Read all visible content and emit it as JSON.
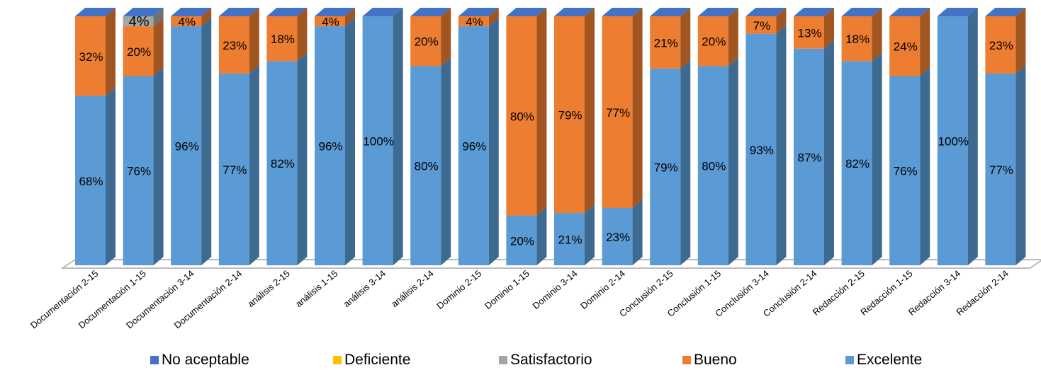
{
  "chart_data": {
    "type": "bar",
    "stacked": true,
    "three_d": true,
    "categories": [
      "Documentación 2-15",
      "Documentación 1-15",
      "Documentación  3-14",
      "Documentación 2-14",
      "análisis 2-15",
      "análisis 1-15",
      "análisis  3-14",
      "análisis 2-14",
      "Dominio 2-15",
      "Dominio 1-15",
      "Dominio  3-14",
      "Dominio 2-14",
      "Conclusión 2-15",
      "Conclusión 1-15",
      "Conclusión  3-14",
      "Conclusión 2-14",
      "Redacción 2-15",
      "Redacción 1-15",
      "Redacción  3-14",
      "Redacción 2-14"
    ],
    "series": [
      {
        "name": "No aceptable",
        "color": "#4472c4",
        "values": [
          0,
          0,
          0,
          0,
          0,
          0,
          0,
          0,
          0,
          0,
          0,
          0,
          0,
          0,
          0,
          0,
          0,
          0,
          0,
          0
        ],
        "labels": [
          "",
          "",
          "",
          "",
          "",
          "",
          "",
          "",
          "",
          "",
          "",
          "",
          "",
          "",
          "",
          "",
          "",
          "",
          "",
          ""
        ]
      },
      {
        "name": "Deficiente",
        "color": "#ffc000",
        "values": [
          0,
          0,
          0,
          0,
          0,
          0,
          0,
          0,
          0,
          0,
          0,
          0,
          0,
          0,
          0,
          0,
          0,
          0,
          0,
          0
        ],
        "labels": [
          "",
          "",
          "",
          "",
          "",
          "",
          "",
          "",
          "",
          "",
          "",
          "",
          "",
          "",
          "",
          "",
          "",
          "",
          "",
          ""
        ]
      },
      {
        "name": "Satisfactorio",
        "color": "#a5a5a5",
        "values": [
          0,
          4,
          0,
          0,
          0,
          0,
          0,
          0,
          0,
          0,
          0,
          0,
          0,
          0,
          0,
          0,
          0,
          0,
          0,
          0
        ],
        "labels": [
          "",
          "4%",
          "",
          "",
          "",
          "",
          "",
          "",
          "",
          "",
          "",
          "",
          "",
          "",
          "",
          "",
          "",
          "",
          "",
          ""
        ]
      },
      {
        "name": "Bueno",
        "color": "#ed7d31",
        "values": [
          32,
          20,
          4,
          23,
          18,
          4,
          0,
          20,
          4,
          80,
          79,
          77,
          21,
          20,
          7,
          13,
          18,
          24,
          0,
          23
        ],
        "labels": [
          "32%",
          "20%",
          "4%",
          "23%",
          "18%",
          "4%",
          "",
          "20%",
          "4%",
          "80%",
          "79%",
          "77%",
          "21%",
          "20%",
          "7%",
          "13%",
          "18%",
          "24%",
          "",
          "23%"
        ]
      },
      {
        "name": "Excelente",
        "color": "#5b9bd5",
        "values": [
          68,
          76,
          96,
          77,
          82,
          96,
          100,
          80,
          96,
          20,
          21,
          23,
          79,
          80,
          93,
          87,
          82,
          76,
          100,
          77
        ],
        "labels": [
          "68%",
          "76%",
          "96%",
          "77%",
          "82%",
          "96%",
          "100%",
          "80%",
          "96%",
          "20%",
          "21%",
          "23%",
          "79%",
          "80%",
          "93%",
          "87%",
          "82%",
          "76%",
          "100%",
          "77%"
        ]
      }
    ],
    "stack_order": [
      "Excelente",
      "Bueno",
      "Satisfactorio",
      "Deficiente",
      "No aceptable"
    ],
    "ylim": [
      0,
      100
    ],
    "grid": false,
    "legend_position": "bottom"
  }
}
